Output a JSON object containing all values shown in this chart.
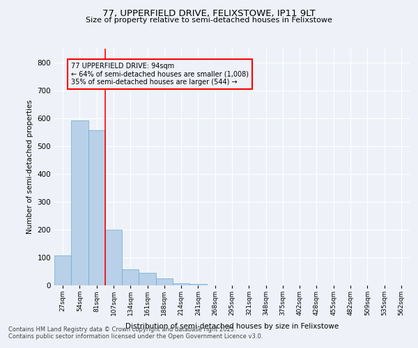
{
  "title1": "77, UPPERFIELD DRIVE, FELIXSTOWE, IP11 9LT",
  "title2": "Size of property relative to semi-detached houses in Felixstowe",
  "xlabel": "Distribution of semi-detached houses by size in Felixstowe",
  "ylabel": "Number of semi-detached properties",
  "categories": [
    "27sqm",
    "54sqm",
    "81sqm",
    "107sqm",
    "134sqm",
    "161sqm",
    "188sqm",
    "214sqm",
    "241sqm",
    "268sqm",
    "295sqm",
    "321sqm",
    "348sqm",
    "375sqm",
    "402sqm",
    "428sqm",
    "455sqm",
    "482sqm",
    "509sqm",
    "535sqm",
    "562sqm"
  ],
  "values": [
    108,
    593,
    557,
    201,
    57,
    44,
    25,
    8,
    4,
    0,
    0,
    0,
    0,
    0,
    0,
    0,
    0,
    0,
    0,
    0,
    0
  ],
  "bar_color": "#b8d0e8",
  "bar_edgecolor": "#6aaad4",
  "vline_bin_index": 2,
  "annotation_title": "77 UPPERFIELD DRIVE: 94sqm",
  "annotation_line1": "← 64% of semi-detached houses are smaller (1,008)",
  "annotation_line2": "35% of semi-detached houses are larger (544) →",
  "ylim": [
    0,
    850
  ],
  "yticks": [
    0,
    100,
    200,
    300,
    400,
    500,
    600,
    700,
    800
  ],
  "footer1": "Contains HM Land Registry data © Crown copyright and database right 2025.",
  "footer2": "Contains public sector information licensed under the Open Government Licence v3.0.",
  "bg_color": "#eef2f8",
  "grid_color": "#ffffff"
}
